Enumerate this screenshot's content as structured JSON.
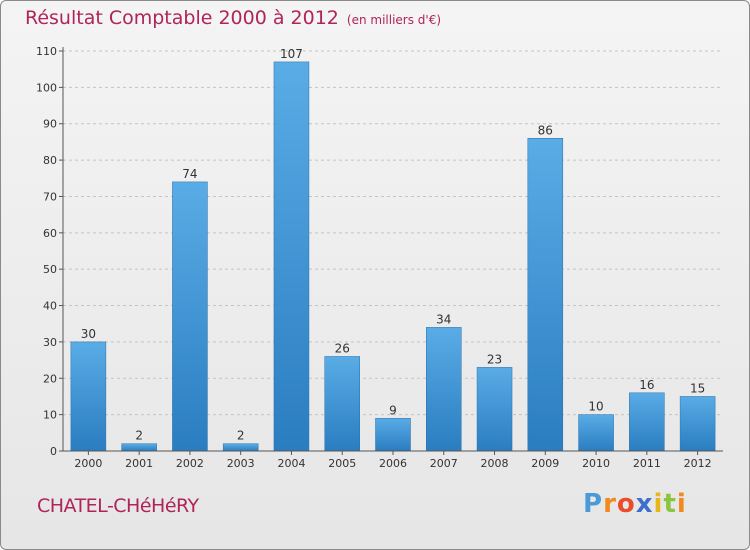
{
  "chart_data": {
    "type": "bar",
    "title": "Résultat Comptable 2000 à 2012",
    "subtitle": "(en milliers d'€)",
    "categories": [
      "2000",
      "2001",
      "2002",
      "2003",
      "2004",
      "2005",
      "2006",
      "2007",
      "2008",
      "2009",
      "2010",
      "2011",
      "2012"
    ],
    "values": [
      30,
      2,
      74,
      2,
      107,
      26,
      9,
      34,
      23,
      86,
      10,
      16,
      15
    ],
    "yticks": [
      "0",
      "10",
      "20",
      "30",
      "40",
      "50",
      "60",
      "70",
      "80",
      "90",
      "100",
      "110"
    ],
    "ylim": [
      0,
      110
    ],
    "xlabel": "",
    "ylabel": "",
    "grid": true,
    "bar_color_top": "#5aace6",
    "bar_color_bottom": "#2a7dc0"
  },
  "footer": {
    "commune": "CHATEL-CHéHéRY",
    "logo": "Proxiti"
  }
}
